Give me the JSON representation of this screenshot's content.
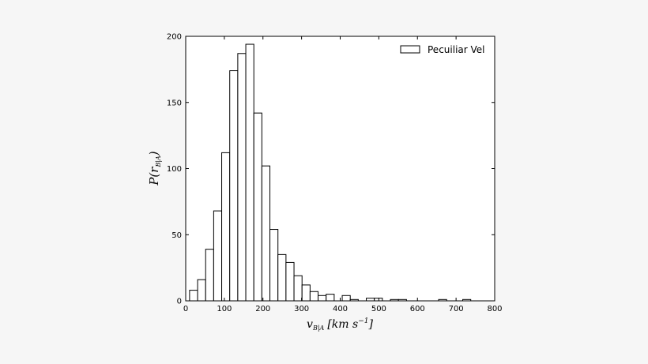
{
  "chart_data": {
    "type": "bar",
    "bin_width": 20.8,
    "bin_starts": [
      10.0,
      30.8,
      51.6,
      72.4,
      93.2,
      114.0,
      134.8,
      155.6,
      176.4,
      197.2,
      218.0,
      238.8,
      259.6,
      280.4,
      301.2,
      322.0,
      342.8,
      363.6,
      384.4,
      405.2,
      426.0,
      446.8,
      467.6,
      488.4,
      509.2,
      530.0,
      550.8,
      571.6,
      592.4,
      613.2,
      634.0,
      654.8,
      675.6,
      696.4,
      717.2,
      738.0
    ],
    "values": [
      8,
      16,
      39,
      68,
      112,
      174,
      187,
      194,
      142,
      102,
      54,
      35,
      29,
      19,
      12,
      7,
      4,
      5,
      0,
      4,
      1,
      0,
      2,
      2,
      0,
      1,
      1,
      0,
      0,
      0,
      0,
      1,
      0,
      0,
      1,
      0
    ],
    "xlim": [
      0,
      800
    ],
    "ylim": [
      0,
      200
    ],
    "xticks": [
      0,
      100,
      200,
      300,
      400,
      500,
      600,
      700,
      800
    ],
    "yticks": [
      0,
      50,
      100,
      150,
      200
    ],
    "legend": {
      "label": "Pecuiliar Vel",
      "position": "upper right"
    },
    "xlabel": {
      "var": "v",
      "sub": "B|A",
      "units": "[km s",
      "exp": "−1",
      "close": "]"
    },
    "ylabel": {
      "var": "P",
      "open": "(",
      "inner": "r",
      "sub": "B|A",
      "close": ")"
    },
    "fill_color": "#ffffff",
    "edge_color": "#000000",
    "grid": false
  }
}
